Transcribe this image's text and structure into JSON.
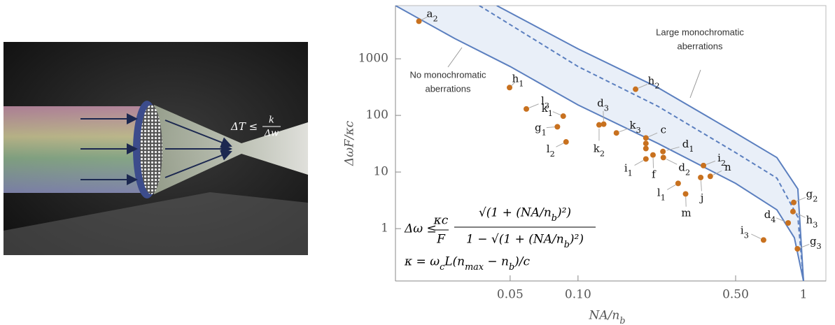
{
  "illustration": {
    "equation_lhs": "ΔT ≤",
    "equation_num": "k",
    "equation_den": "Δw"
  },
  "chart_data": {
    "type": "scatter",
    "x_label": "NA/n_b",
    "y_label": "ΔωF/κc",
    "xscale": "log",
    "yscale": "log",
    "xlim": [
      0.0155,
      1.257
    ],
    "ylim": [
      0.119,
      8700
    ],
    "xticks": [
      0.05,
      {
        "value": 0.1,
        "label": "0.10"
      },
      {
        "value": 0.5,
        "label": "0.50"
      },
      1
    ],
    "yticks": [
      1,
      10,
      100,
      1000
    ],
    "color": "#c8711f",
    "points": {
      "labels": [
        "a_2",
        "h_1",
        "l_3",
        "k_1",
        "g_1",
        "k_2",
        "d_3",
        "l_2",
        "k_3",
        "c",
        null,
        null,
        "i_1",
        "f",
        "d_1",
        "d_2",
        "i_2",
        "n",
        "j",
        "l_1",
        "m",
        "h_2",
        "g_2",
        "h_3",
        "d_4",
        "i_3",
        "g_3"
      ],
      "x": [
        0.0197,
        0.0497,
        0.059,
        0.086,
        0.081,
        0.124,
        0.13,
        0.0885,
        0.148,
        0.2,
        0.2,
        0.2,
        0.2,
        0.215,
        0.238,
        0.239,
        0.36,
        0.386,
        0.35,
        0.278,
        0.3,
        0.18,
        0.905,
        0.898,
        0.855,
        0.665,
        0.94
      ],
      "values": [
        4600,
        310,
        130,
        97,
        63,
        68,
        70,
        34,
        49,
        40,
        32,
        26,
        17,
        20,
        23,
        18,
        13,
        8.4,
        8.0,
        6.3,
        4.1,
        290,
        2.9,
        2.0,
        1.26,
        0.63,
        0.44
      ]
    },
    "curves": [
      {
        "color": "#5b7fbf",
        "style": "solid",
        "x": [
          0.0155,
          0.0284,
          0.05,
          0.1,
          0.226,
          0.5,
          0.762,
          0.911,
          1
        ],
        "values": [
          8700,
          2280,
          730,
          153,
          32,
          6.3,
          2.15,
          0.69,
          0.119
        ]
      },
      {
        "color": "#5b7fbf",
        "style": "solid",
        "x": [
          0.0436,
          0.1,
          0.226,
          0.5,
          0.762,
          0.944,
          1
        ],
        "values": [
          8700,
          1500,
          310,
          49,
          18,
          5,
          0.119
        ]
      },
      {
        "color": "#5b7fbf",
        "style": "dashed",
        "x": [
          0.0365,
          0.1,
          0.226,
          0.5,
          0.762,
          0.944,
          1
        ],
        "values": [
          8700,
          730,
          145,
          22,
          7.8,
          1.6,
          0.119
        ]
      }
    ],
    "annotations": {
      "large": [
        "Large monochromatic",
        "aberrations"
      ],
      "none": [
        "No monochromatic",
        "aberrations"
      ]
    },
    "formula": {
      "lhs": "Δω ≤",
      "frac1_num": "κc",
      "frac1_den": "F",
      "frac2_num": "√(1 + (NA/n_b)²)",
      "frac2_den": "1 − √(1 + (NA/n_b)²)",
      "kappa": "κ = ω_cL(n_{max} − n_b)/c"
    }
  }
}
